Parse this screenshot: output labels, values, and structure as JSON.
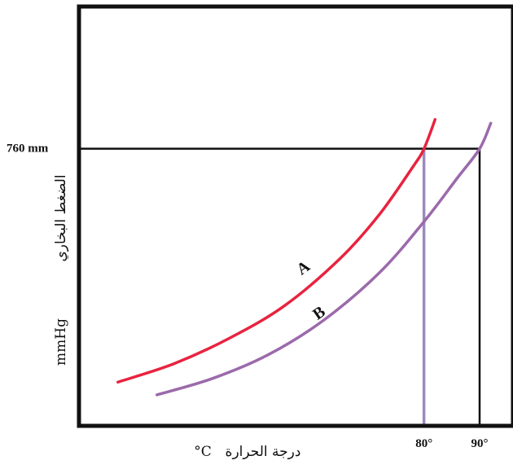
{
  "chart_data": {
    "type": "line",
    "title": "",
    "xlabel": "درجة الحرارة °C",
    "ylabel": "الضغط البخاري mmHg",
    "ylabel_parts": {
      "arabic": "الضغط البخاري",
      "unit": "mmHg"
    },
    "xlabel_parts": {
      "arabic": "درجة الحرارة",
      "unit": "°C"
    },
    "y_reference": {
      "value": 760,
      "label": "760 mm"
    },
    "x_ticks": [
      {
        "value": 80,
        "label": "80°"
      },
      {
        "value": 90,
        "label": "90°"
      }
    ],
    "xlim": [
      18,
      96
    ],
    "ylim": [
      0,
      1150
    ],
    "grid": false,
    "series": [
      {
        "name": "A",
        "color": "#e8233f",
        "x": [
          25,
          35,
          45,
          55,
          65,
          72,
          78,
          80,
          82
        ],
        "y": [
          120,
          170,
          240,
          330,
          460,
          580,
          710,
          760,
          840
        ]
      },
      {
        "name": "B",
        "color": "#9b6aab",
        "x": [
          32,
          42,
          52,
          62,
          72,
          80,
          86,
          90,
          92
        ],
        "y": [
          85,
          130,
          195,
          290,
          420,
          560,
          680,
          760,
          830
        ]
      }
    ],
    "reference_line_colors": {
      "A": "#9b8bbd",
      "B": "#111111"
    }
  }
}
